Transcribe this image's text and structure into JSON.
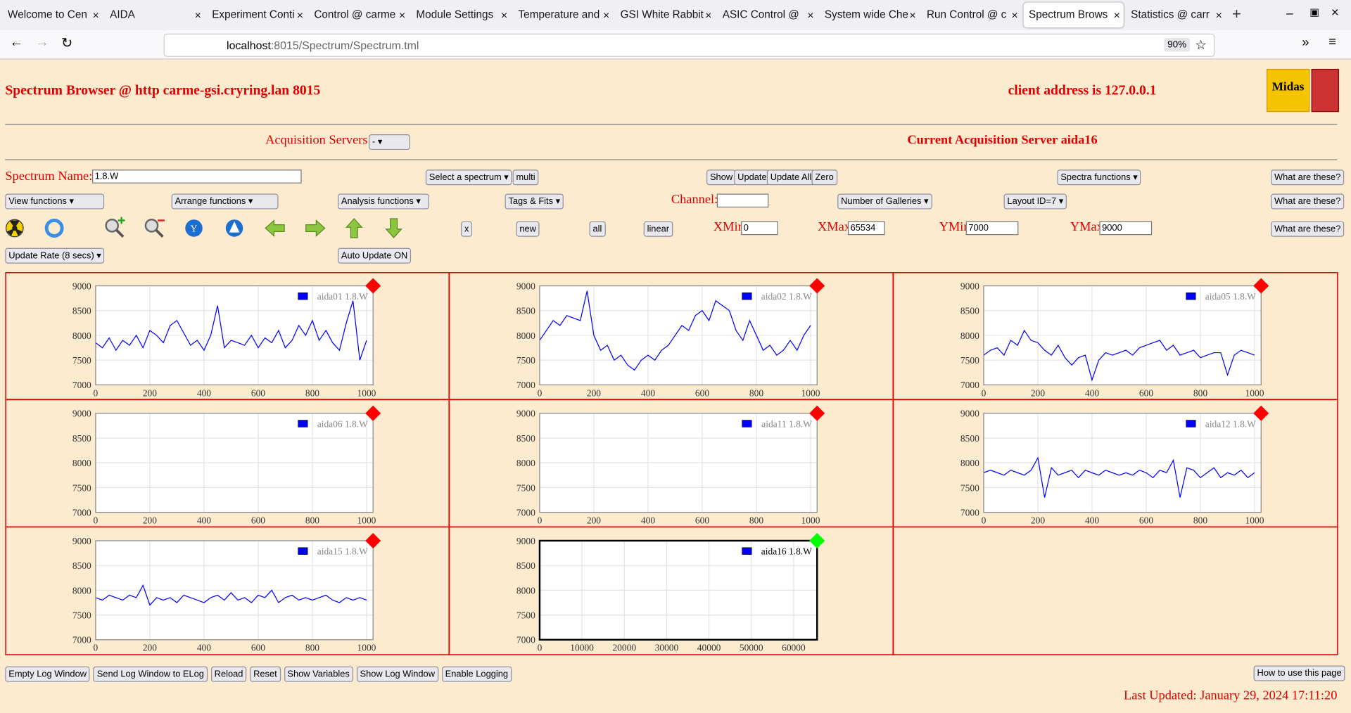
{
  "browser": {
    "tabs": [
      "Welcome to Cen",
      "AIDA",
      "Experiment Conti",
      "Control @ carme",
      "Module Settings",
      "Temperature and",
      "GSI White Rabbit",
      "ASIC Control @ ",
      "System wide Che",
      "Run Control @ c",
      "Spectrum Brows",
      "Statistics @ carr"
    ],
    "active_tab": 10,
    "url_host": "localhost",
    "url_rest": ":8015/Spectrum/Spectrum.tml",
    "zoom": "90%"
  },
  "header": {
    "title": "Spectrum Browser @ http carme-gsi.cryring.lan 8015",
    "client": "client address is 127.0.0.1",
    "logo": "Midas"
  },
  "acquisition": {
    "label": "Acquisition Servers",
    "selected": "-",
    "current": "Current Acquisition Server aida16"
  },
  "controls": {
    "spectrum_name_label": "Spectrum Name:",
    "spectrum_name": "1.8.W",
    "select_spectrum": "Select a spectrum",
    "multi": "multi",
    "show": "Show",
    "update": "Update",
    "update_all": "Update All",
    "zero": "Zero",
    "spectra_functions": "Spectra functions",
    "help": [
      "What are these?",
      "What are these?",
      "What are these?"
    ],
    "view_functions": "View functions",
    "arrange_functions": "Arrange functions",
    "analysis_functions": "Analysis functions",
    "tags_fits": "Tags & Fits",
    "channel_label": "Channel:",
    "galleries": "Number of Galleries",
    "layout": "Layout ID=7",
    "x": "x",
    "new": "new",
    "all": "all",
    "linear": "linear",
    "xmin_label": "XMin",
    "xmin": "0",
    "xmax_label": "XMax",
    "xmax": "65534",
    "ymin_label": "YMin",
    "ymin": "7000",
    "ymax_label": "YMax",
    "ymax": "9000",
    "update_rate": "Update Rate (8 secs)",
    "auto_update": "Auto Update ON"
  },
  "plots": [
    {
      "legend": "aida01 1.8.W",
      "active": false,
      "status_color": "#ff0000",
      "color": "#0000ff",
      "xlim": [
        0,
        1024
      ],
      "ylim": [
        7000,
        9000
      ],
      "xticks": [
        0,
        200,
        400,
        600,
        800,
        1000
      ],
      "yticks": [
        7000,
        7500,
        8000,
        8500,
        9000
      ],
      "x": [
        0,
        25,
        50,
        75,
        100,
        125,
        150,
        175,
        200,
        225,
        250,
        275,
        300,
        325,
        350,
        375,
        400,
        425,
        450,
        475,
        500,
        525,
        550,
        575,
        600,
        625,
        650,
        675,
        700,
        725,
        750,
        775,
        800,
        825,
        850,
        875,
        900,
        925,
        950,
        975,
        1000
      ],
      "values": [
        7850,
        7750,
        7950,
        7700,
        7900,
        7800,
        8000,
        7750,
        8100,
        8000,
        7850,
        8200,
        8300,
        8050,
        7800,
        7900,
        7700,
        8000,
        8600,
        7750,
        7900,
        7850,
        7800,
        8000,
        7750,
        7950,
        7850,
        8100,
        7750,
        7900,
        8200,
        8000,
        8300,
        7900,
        8100,
        7850,
        7700,
        8250,
        8700,
        7500,
        7900
      ]
    },
    {
      "legend": "aida02 1.8.W",
      "active": false,
      "status_color": "#ff0000",
      "color": "#0000ff",
      "xlim": [
        0,
        1024
      ],
      "ylim": [
        7000,
        9000
      ],
      "xticks": [
        0,
        200,
        400,
        600,
        800,
        1000
      ],
      "yticks": [
        7000,
        7500,
        8000,
        8500,
        9000
      ],
      "x": [
        0,
        25,
        50,
        75,
        100,
        125,
        150,
        175,
        200,
        225,
        250,
        275,
        300,
        325,
        350,
        375,
        400,
        425,
        450,
        475,
        500,
        525,
        550,
        575,
        600,
        625,
        650,
        675,
        700,
        725,
        750,
        775,
        800,
        825,
        850,
        875,
        900,
        925,
        950,
        975,
        1000
      ],
      "values": [
        7900,
        8100,
        8300,
        8200,
        8400,
        8350,
        8300,
        8900,
        8000,
        7700,
        7800,
        7500,
        7600,
        7400,
        7300,
        7500,
        7600,
        7500,
        7700,
        7800,
        8000,
        8200,
        8100,
        8400,
        8500,
        8300,
        8700,
        8600,
        8500,
        8100,
        7900,
        8300,
        8000,
        7700,
        7800,
        7600,
        7700,
        7900,
        7700,
        8000,
        8200
      ]
    },
    {
      "legend": "aida05 1.8.W",
      "active": false,
      "status_color": "#ff0000",
      "color": "#0000ff",
      "xlim": [
        0,
        1024
      ],
      "ylim": [
        7000,
        9000
      ],
      "xticks": [
        0,
        200,
        400,
        600,
        800,
        1000
      ],
      "yticks": [
        7000,
        7500,
        8000,
        8500,
        9000
      ],
      "x": [
        0,
        25,
        50,
        75,
        100,
        125,
        150,
        175,
        200,
        225,
        250,
        275,
        300,
        325,
        350,
        375,
        400,
        425,
        450,
        475,
        500,
        525,
        550,
        575,
        600,
        625,
        650,
        675,
        700,
        725,
        750,
        775,
        800,
        825,
        850,
        875,
        900,
        925,
        950,
        975,
        1000
      ],
      "values": [
        7600,
        7700,
        7750,
        7600,
        7900,
        7800,
        8100,
        7900,
        7850,
        7700,
        7600,
        7800,
        7550,
        7400,
        7550,
        7600,
        7100,
        7500,
        7650,
        7600,
        7650,
        7700,
        7600,
        7750,
        7800,
        7850,
        7900,
        7700,
        7800,
        7600,
        7650,
        7700,
        7550,
        7600,
        7650,
        7650,
        7200,
        7600,
        7700,
        7650,
        7600
      ]
    },
    {
      "legend": "aida06 1.8.W",
      "active": false,
      "status_color": "#ff0000",
      "color": "#0000ff",
      "xlim": [
        0,
        1024
      ],
      "ylim": [
        7000,
        9000
      ],
      "xticks": [
        0,
        200,
        400,
        600,
        800,
        1000
      ],
      "yticks": [
        7000,
        7500,
        8000,
        8500,
        9000
      ]
    },
    {
      "legend": "aida11 1.8.W",
      "active": false,
      "status_color": "#ff0000",
      "color": "#0000ff",
      "xlim": [
        0,
        1024
      ],
      "ylim": [
        7000,
        9000
      ],
      "xticks": [
        0,
        200,
        400,
        600,
        800,
        1000
      ],
      "yticks": [
        7000,
        7500,
        8000,
        8500,
        9000
      ]
    },
    {
      "legend": "aida12 1.8.W",
      "active": false,
      "status_color": "#ff0000",
      "color": "#0000ff",
      "xlim": [
        0,
        1024
      ],
      "ylim": [
        7000,
        9000
      ],
      "xticks": [
        0,
        200,
        400,
        600,
        800,
        1000
      ],
      "yticks": [
        7000,
        7500,
        8000,
        8500,
        9000
      ],
      "x": [
        0,
        25,
        50,
        75,
        100,
        125,
        150,
        175,
        200,
        225,
        250,
        275,
        300,
        325,
        350,
        375,
        400,
        425,
        450,
        475,
        500,
        525,
        550,
        575,
        600,
        625,
        650,
        675,
        700,
        725,
        750,
        775,
        800,
        825,
        850,
        875,
        900,
        925,
        950,
        975,
        1000
      ],
      "values": [
        7800,
        7850,
        7800,
        7750,
        7850,
        7800,
        7750,
        7850,
        8100,
        7300,
        7900,
        7750,
        7800,
        7850,
        7700,
        7850,
        7800,
        7750,
        7850,
        7800,
        7750,
        7800,
        7750,
        7850,
        7800,
        7700,
        7850,
        7800,
        8050,
        7300,
        7900,
        7850,
        7700,
        7800,
        7900,
        7700,
        7800,
        7750,
        7850,
        7700,
        7800
      ]
    },
    {
      "legend": "aida15 1.8.W",
      "active": false,
      "status_color": "#ff0000",
      "color": "#0000ff",
      "xlim": [
        0,
        1024
      ],
      "ylim": [
        7000,
        9000
      ],
      "xticks": [
        0,
        200,
        400,
        600,
        800,
        1000
      ],
      "yticks": [
        7000,
        7500,
        8000,
        8500,
        9000
      ],
      "x": [
        0,
        25,
        50,
        75,
        100,
        125,
        150,
        175,
        200,
        225,
        250,
        275,
        300,
        325,
        350,
        375,
        400,
        425,
        450,
        475,
        500,
        525,
        550,
        575,
        600,
        625,
        650,
        675,
        700,
        725,
        750,
        775,
        800,
        825,
        850,
        875,
        900,
        925,
        950,
        975,
        1000
      ],
      "values": [
        7850,
        7800,
        7900,
        7850,
        7800,
        7900,
        7850,
        8100,
        7700,
        7850,
        7800,
        7850,
        7750,
        7900,
        7850,
        7800,
        7750,
        7850,
        7900,
        7800,
        7950,
        7800,
        7850,
        7750,
        7900,
        7850,
        8000,
        7750,
        7850,
        7900,
        7800,
        7850,
        7800,
        7850,
        7900,
        7800,
        7750,
        7850,
        7800,
        7850,
        7800
      ]
    },
    {
      "legend": "aida16 1.8.W",
      "active": true,
      "status_color": "#00ff00",
      "color": "#0000ff",
      "xlim": [
        0,
        65536
      ],
      "ylim": [
        7000,
        9000
      ],
      "xticks": [
        0,
        10000,
        20000,
        30000,
        40000,
        50000,
        60000
      ],
      "yticks": [
        7000,
        7500,
        8000,
        8500,
        9000
      ]
    }
  ],
  "footer": {
    "buttons": [
      "Empty Log Window",
      "Send Log Window to ELog",
      "Reload",
      "Reset",
      "Show Variables",
      "Show Log Window",
      "Enable Logging"
    ],
    "help": "How to use this page",
    "last_updated": "Last Updated: January 29, 2024 17:11:20"
  }
}
